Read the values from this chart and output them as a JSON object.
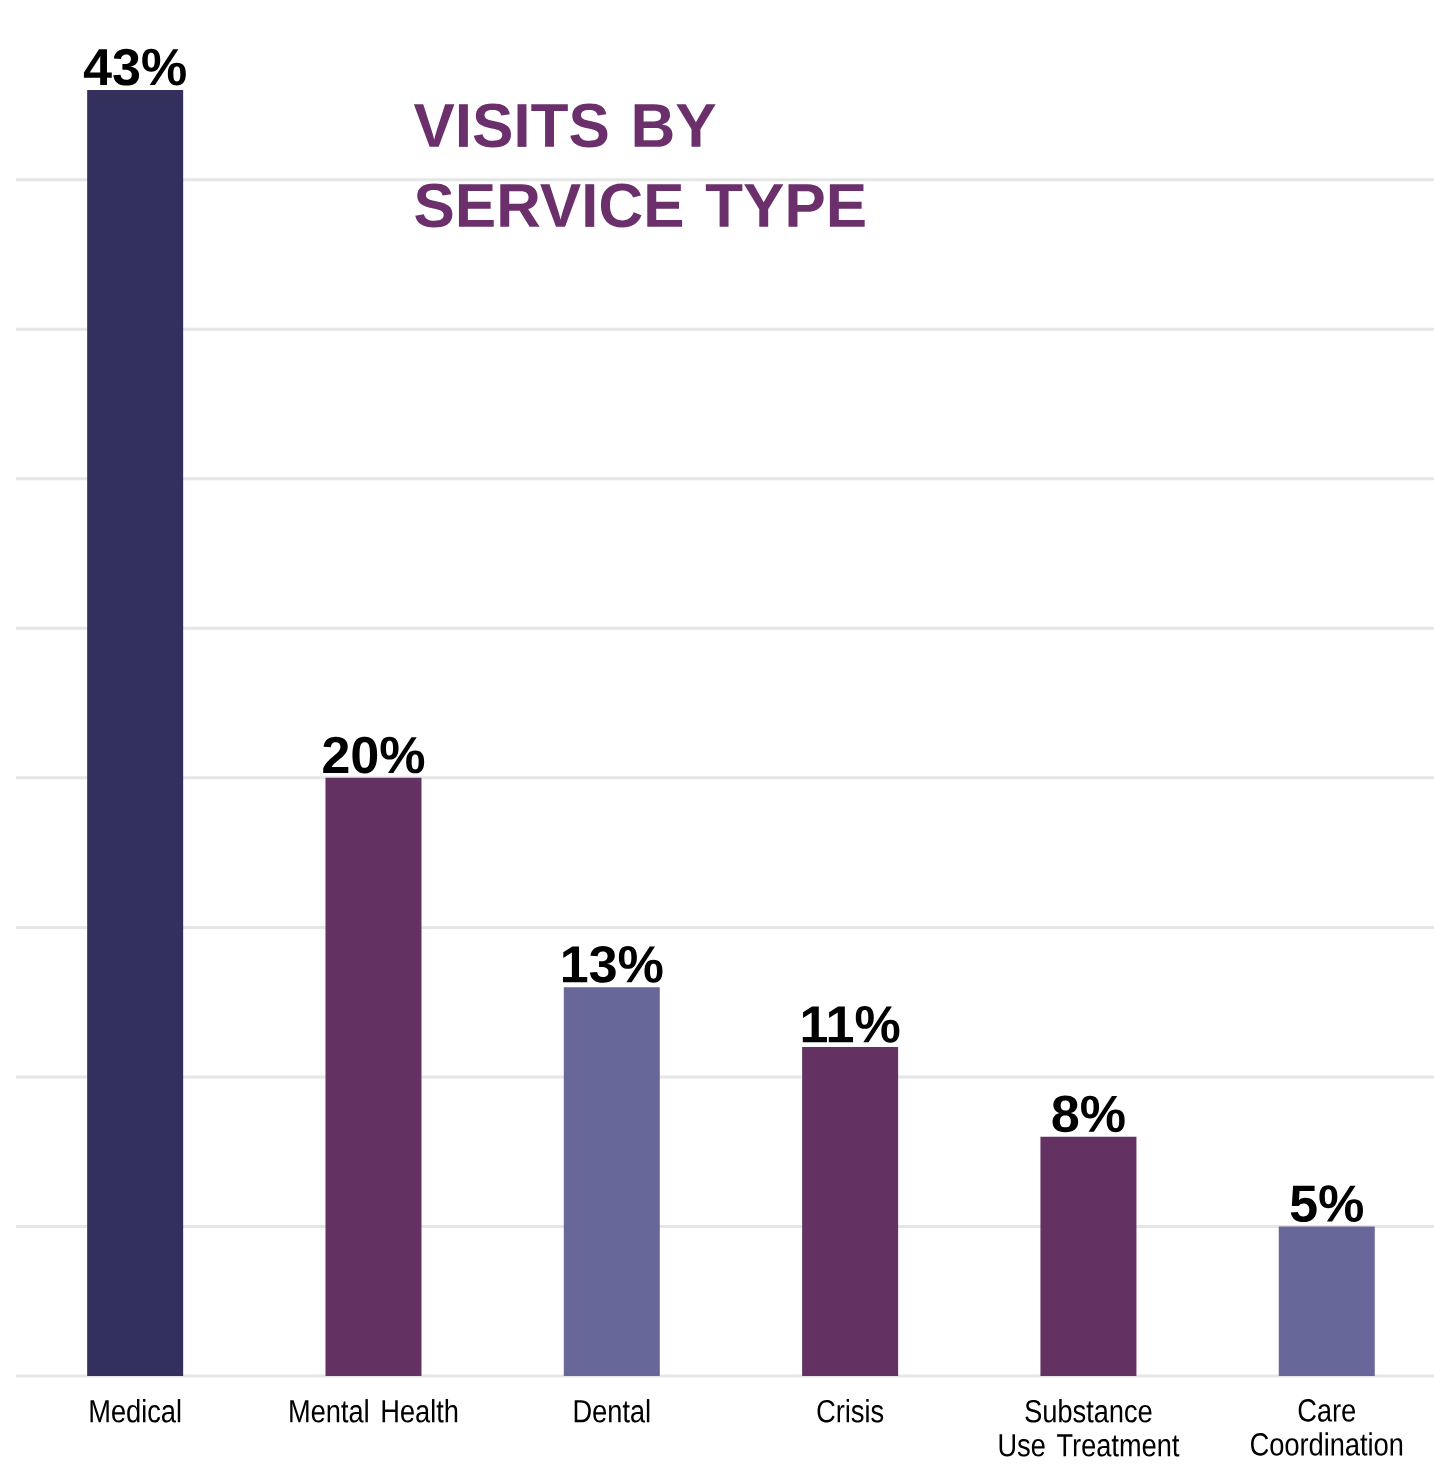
{
  "chart_data": {
    "type": "bar",
    "title": "VISITS BY SERVICE TYPE",
    "categories": [
      "Medical",
      "Mental Health",
      "Dental",
      "Crisis",
      "Substance Use Treatment",
      "Care Coordination"
    ],
    "values": [
      43,
      20,
      13,
      11,
      8,
      5
    ],
    "value_labels": [
      "43%",
      "20%",
      "13%",
      "11%",
      "8%",
      "5%"
    ],
    "colors": [
      "#33305e",
      "#643262",
      "#686799",
      "#643262",
      "#643262",
      "#686799"
    ],
    "yticks": [
      {
        "value": 0,
        "label": null
      },
      {
        "value": 5,
        "label": null
      },
      {
        "value": 10,
        "label": null
      },
      {
        "value": 15,
        "label": null
      },
      {
        "value": 20,
        "label": null
      },
      {
        "value": 25,
        "label": null
      },
      {
        "value": 30,
        "label": null
      },
      {
        "value": 35,
        "label": null
      },
      {
        "value": 40,
        "label": null
      }
    ],
    "grid": "y",
    "tick_labels": "x"
  }
}
